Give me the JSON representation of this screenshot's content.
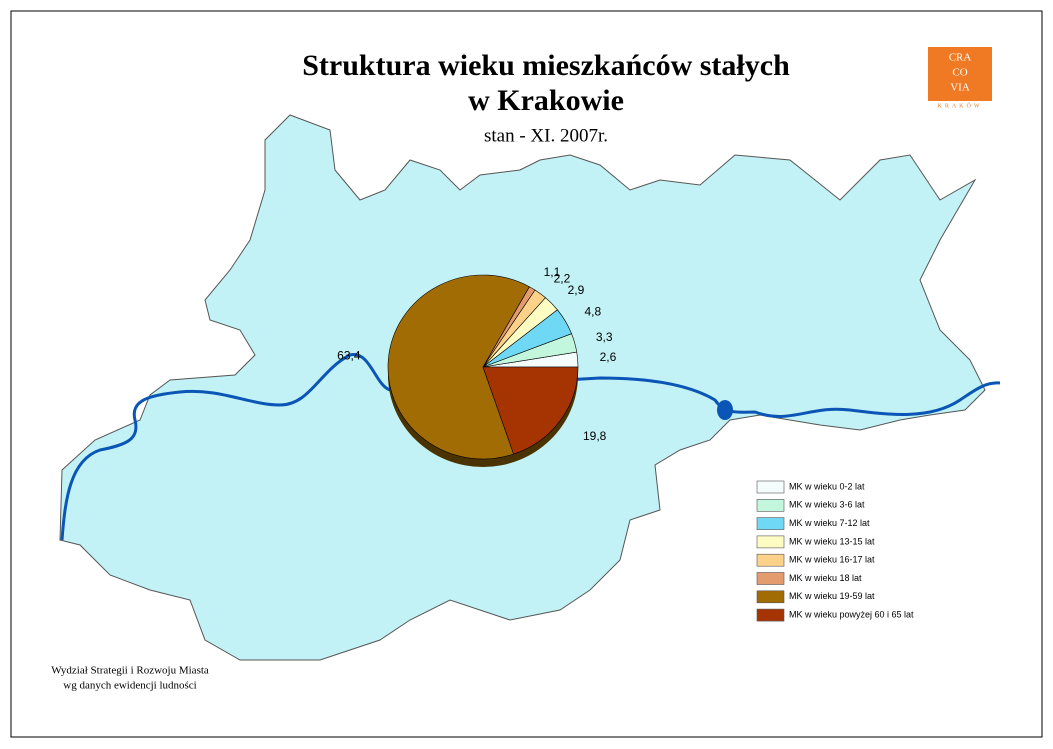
{
  "chart_data": {
    "type": "pie",
    "title": [
      "Struktura wieku mieszkańców stałych",
      "w Krakowie"
    ],
    "subtitle": "stan - XI. 2007r.",
    "categories": [
      "MK w wieku 0-2 lat",
      "MK w wieku 3-6 lat",
      "MK w wieku 7-12 lat",
      "MK w wieku 13-15 lat",
      "MK w wieku 16-17 lat",
      "MK w wieku 18 lat",
      "MK w wieku 19-59 lat",
      "MK w wieku powyżej 60 i 65 lat"
    ],
    "values": [
      2.6,
      3.3,
      4.8,
      2.9,
      2.2,
      1.1,
      63.4,
      19.8
    ],
    "value_labels": [
      "2,6",
      "3,3",
      "4,8",
      "2,9",
      "2,2",
      "1,1",
      "63,4",
      "19,8"
    ],
    "colors": [
      "#f4fdfb",
      "#c2f7de",
      "#6fd8f5",
      "#fdfcc2",
      "#fcd28a",
      "#e49b6e",
      "#a26c05",
      "#a63403"
    ],
    "legend": "bottom-right"
  },
  "footer": [
    "Wydział Strategii i Rozwoju Miasta",
    "wg danych ewidencji ludności"
  ],
  "logo": {
    "lines": [
      "CRA",
      "CO",
      "VIA"
    ],
    "caption": "KRAKÓW"
  }
}
